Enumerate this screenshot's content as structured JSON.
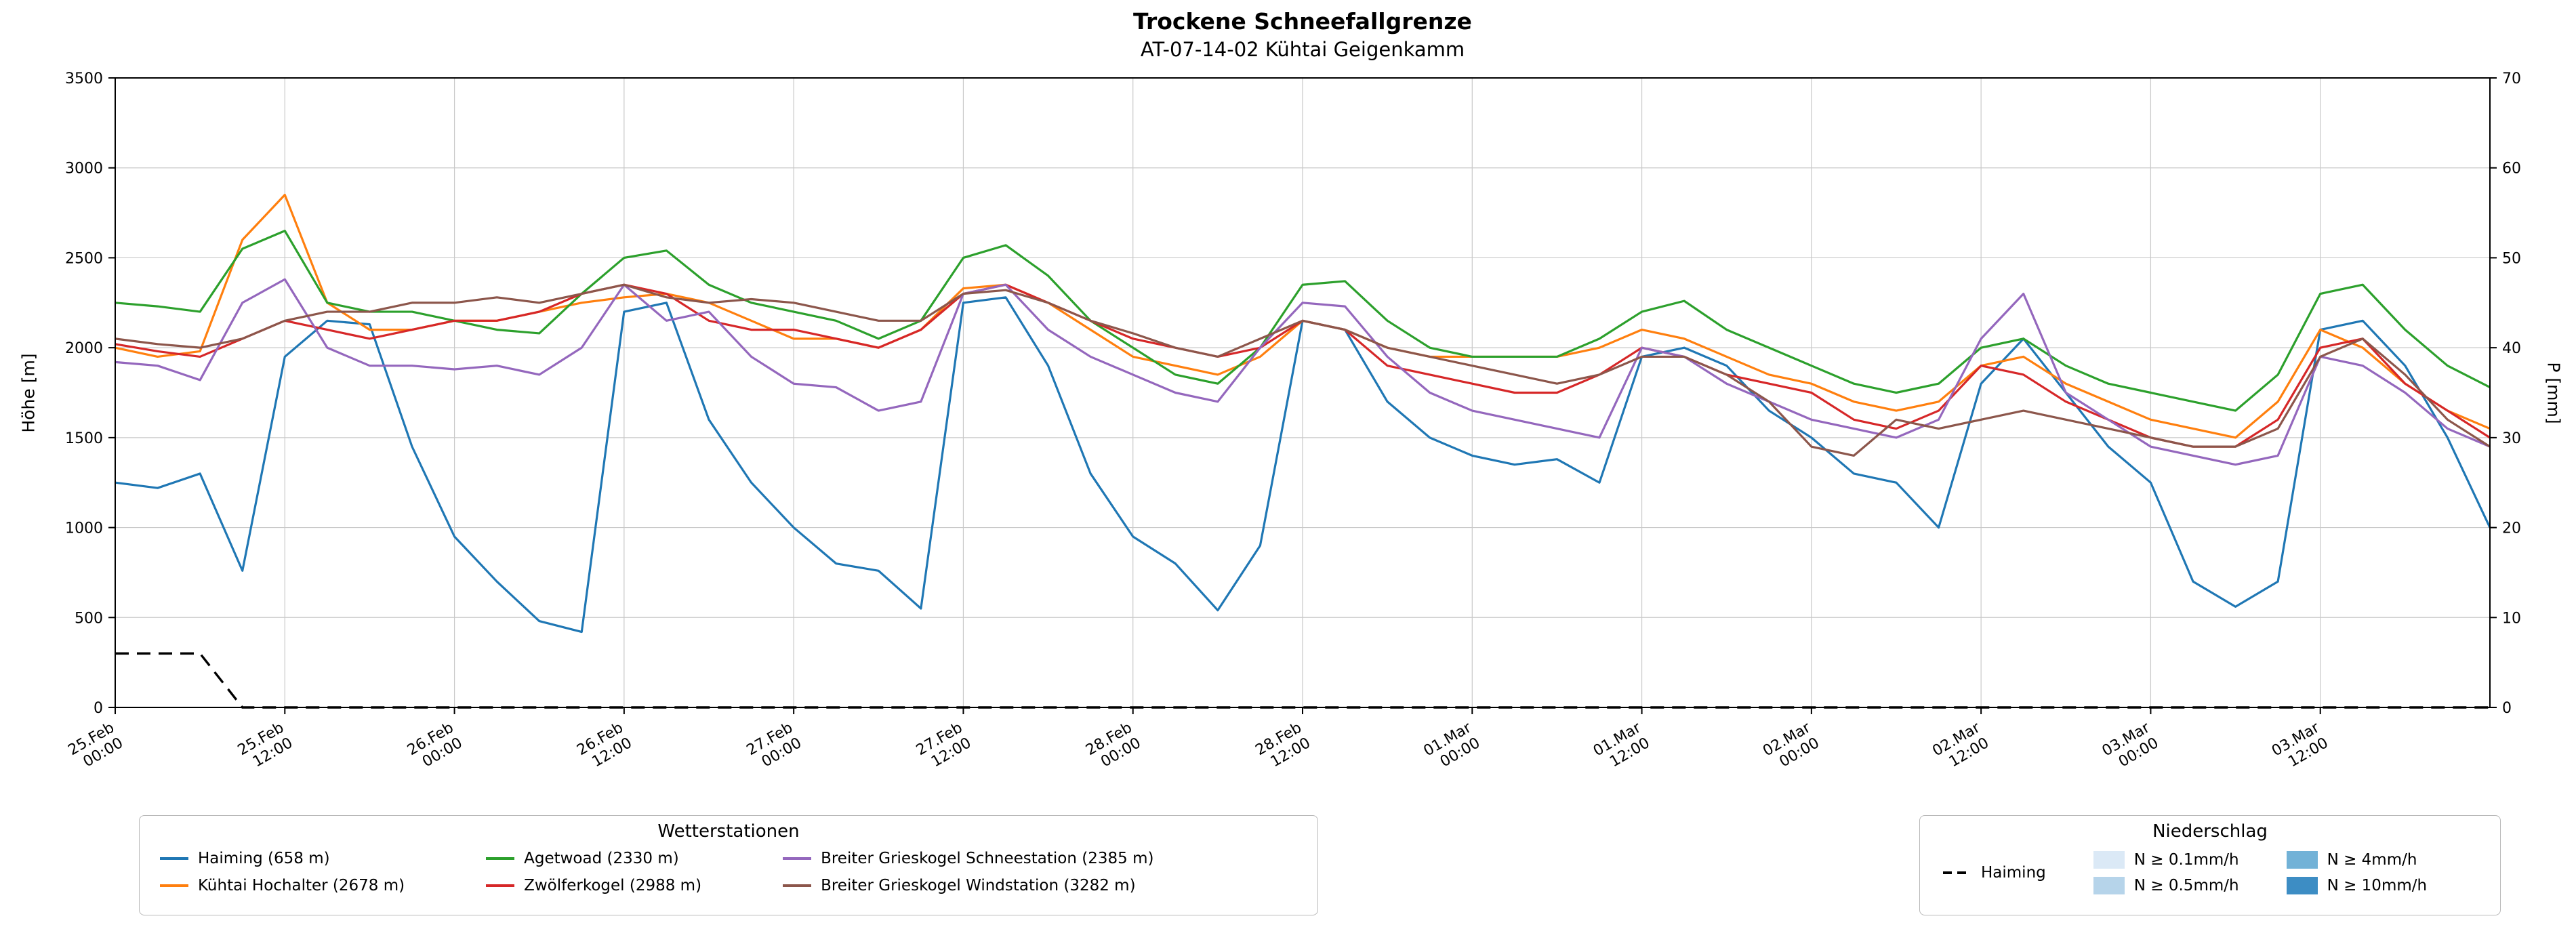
{
  "title": "Trockene Schneefallgrenze",
  "subtitle": "AT-07-14-02 Kühtai Geigenkamm",
  "legend_stations": {
    "title": "Wetterstationen",
    "display_order": [
      0,
      2,
      4,
      1,
      3,
      5
    ]
  },
  "legend_precip": {
    "title": "Niederschlag",
    "dashed_item": {
      "label": "Haiming"
    },
    "patch_items": [
      {
        "label": "N ≥ 0.1mm/h",
        "color": "#dbe9f6"
      },
      {
        "label": "N ≥ 0.5mm/h",
        "color": "#b6d4ea"
      },
      {
        "label": "N ≥ 4mm/h",
        "color": "#72b2d7"
      },
      {
        "label": "N ≥ 10mm/h",
        "color": "#3d8dc4"
      }
    ]
  },
  "chart_data": {
    "type": "line",
    "grid": true,
    "x": {
      "unit": "hours since 25.Feb 00:00",
      "step_hours": 3,
      "max_hours": 168,
      "tick_hours": [
        0,
        12,
        24,
        36,
        48,
        60,
        72,
        84,
        96,
        108,
        120,
        132,
        144,
        156
      ],
      "tick_labels": [
        [
          "25.Feb",
          "00:00"
        ],
        [
          "25.Feb",
          "12:00"
        ],
        [
          "26.Feb",
          "00:00"
        ],
        [
          "26.Feb",
          "12:00"
        ],
        [
          "27.Feb",
          "00:00"
        ],
        [
          "27.Feb",
          "12:00"
        ],
        [
          "28.Feb",
          "00:00"
        ],
        [
          "28.Feb",
          "12:00"
        ],
        [
          "01.Mar",
          "00:00"
        ],
        [
          "01.Mar",
          "12:00"
        ],
        [
          "02.Mar",
          "00:00"
        ],
        [
          "02.Mar",
          "12:00"
        ],
        [
          "03.Mar",
          "00:00"
        ],
        [
          "03.Mar",
          "12:00"
        ]
      ]
    },
    "y_left": {
      "label": "Höhe [m]",
      "min": 0,
      "max": 3500,
      "ticks": [
        0,
        500,
        1000,
        1500,
        2000,
        2500,
        3000,
        3500
      ]
    },
    "y_right": {
      "label": "P [mm]",
      "min": 0,
      "max": 70,
      "ticks": [
        0,
        10,
        20,
        30,
        40,
        50,
        60,
        70
      ]
    },
    "series": [
      {
        "key": "haiming",
        "name": "Haiming (658 m)",
        "color": "#1f77b4",
        "axis": "left",
        "values": [
          1250,
          1220,
          1300,
          760,
          1950,
          2150,
          2130,
          1450,
          950,
          700,
          480,
          420,
          2200,
          2250,
          1600,
          1250,
          1000,
          800,
          760,
          550,
          2250,
          2280,
          1900,
          1300,
          950,
          800,
          540,
          900,
          2150,
          2100,
          1700,
          1500,
          1400,
          1350,
          1380,
          1250,
          1950,
          2000,
          1900,
          1650,
          1500,
          1300,
          1250,
          1000,
          1800,
          2050,
          1750,
          1450,
          1250,
          700,
          560,
          700,
          2100,
          2150,
          1900,
          1500,
          1000
        ]
      },
      {
        "key": "kuehtai-hochalter",
        "name": "Kühtai Hochalter (2678 m)",
        "color": "#ff7f0e",
        "axis": "left",
        "values": [
          2000,
          1950,
          1980,
          2600,
          2850,
          2250,
          2100,
          2100,
          2150,
          2150,
          2200,
          2250,
          2280,
          2300,
          2250,
          2150,
          2050,
          2050,
          2000,
          2100,
          2330,
          2350,
          2250,
          2100,
          1950,
          1900,
          1850,
          1950,
          2150,
          2100,
          2000,
          1950,
          1950,
          1950,
          1950,
          2000,
          2100,
          2050,
          1950,
          1850,
          1800,
          1700,
          1650,
          1700,
          1900,
          1950,
          1800,
          1700,
          1600,
          1550,
          1500,
          1700,
          2100,
          2000,
          1800,
          1650,
          1550
        ]
      },
      {
        "key": "agetwoad",
        "name": "Agetwoad (2330 m)",
        "color": "#2ca02c",
        "axis": "left",
        "values": [
          2250,
          2230,
          2200,
          2550,
          2650,
          2250,
          2200,
          2200,
          2150,
          2100,
          2080,
          2300,
          2500,
          2540,
          2350,
          2250,
          2200,
          2150,
          2050,
          2150,
          2500,
          2570,
          2400,
          2150,
          2000,
          1850,
          1800,
          2000,
          2350,
          2370,
          2150,
          2000,
          1950,
          1950,
          1950,
          2050,
          2200,
          2260,
          2100,
          2000,
          1900,
          1800,
          1750,
          1800,
          2000,
          2050,
          1900,
          1800,
          1750,
          1700,
          1650,
          1850,
          2300,
          2350,
          2100,
          1900,
          1780
        ]
      },
      {
        "key": "zwoelferkogel",
        "name": "Zwölferkogel (2988 m)",
        "color": "#d62728",
        "axis": "left",
        "values": [
          2020,
          1980,
          1950,
          2050,
          2150,
          2100,
          2050,
          2100,
          2150,
          2150,
          2200,
          2300,
          2350,
          2300,
          2150,
          2100,
          2100,
          2050,
          2000,
          2100,
          2300,
          2350,
          2250,
          2150,
          2050,
          2000,
          1950,
          2000,
          2150,
          2100,
          1900,
          1850,
          1800,
          1750,
          1750,
          1850,
          2000,
          1950,
          1850,
          1800,
          1750,
          1600,
          1550,
          1650,
          1900,
          1850,
          1700,
          1600,
          1500,
          1450,
          1450,
          1600,
          2000,
          2050,
          1800,
          1650,
          1500
        ]
      },
      {
        "key": "breiter-grieskogel-schneestation",
        "name": "Breiter Grieskogel Schneestation (2385 m)",
        "color": "#9467bd",
        "axis": "left",
        "values": [
          1920,
          1900,
          1820,
          2250,
          2380,
          2000,
          1900,
          1900,
          1880,
          1900,
          1850,
          2000,
          2350,
          2150,
          2200,
          1950,
          1800,
          1780,
          1650,
          1700,
          2300,
          2350,
          2100,
          1950,
          1850,
          1750,
          1700,
          2000,
          2250,
          2230,
          1950,
          1750,
          1650,
          1600,
          1550,
          1500,
          2000,
          1950,
          1800,
          1700,
          1600,
          1550,
          1500,
          1600,
          2050,
          2300,
          1750,
          1600,
          1450,
          1400,
          1350,
          1400,
          1950,
          1900,
          1750,
          1550,
          1450
        ]
      },
      {
        "key": "breiter-grieskogel-windstation",
        "name": "Breiter Grieskogel Windstation (3282 m)",
        "color": "#8c564b",
        "axis": "left",
        "values": [
          2050,
          2020,
          2000,
          2050,
          2150,
          2200,
          2200,
          2250,
          2250,
          2280,
          2250,
          2300,
          2350,
          2280,
          2250,
          2270,
          2250,
          2200,
          2150,
          2150,
          2300,
          2320,
          2250,
          2150,
          2080,
          2000,
          1950,
          2050,
          2150,
          2100,
          2000,
          1950,
          1900,
          1850,
          1800,
          1850,
          1950,
          1950,
          1850,
          1700,
          1450,
          1400,
          1600,
          1550,
          1600,
          1650,
          1600,
          1550,
          1500,
          1450,
          1450,
          1550,
          1950,
          2050,
          1850,
          1600,
          1450
        ]
      }
    ],
    "dashed_series": {
      "key": "haiming-precipitation",
      "name": "Haiming",
      "color": "#000000",
      "axis": "right",
      "style": "dashed",
      "values": [
        6,
        6,
        6,
        0,
        0,
        0,
        0,
        0,
        0,
        0,
        0,
        0,
        0,
        0,
        0,
        0,
        0,
        0,
        0,
        0,
        0,
        0,
        0,
        0,
        0,
        0,
        0,
        0,
        0,
        0,
        0,
        0,
        0,
        0,
        0,
        0,
        0,
        0,
        0,
        0,
        0,
        0,
        0,
        0,
        0,
        0,
        0,
        0,
        0,
        0,
        0,
        0,
        0,
        0,
        0,
        0,
        0
      ]
    }
  }
}
